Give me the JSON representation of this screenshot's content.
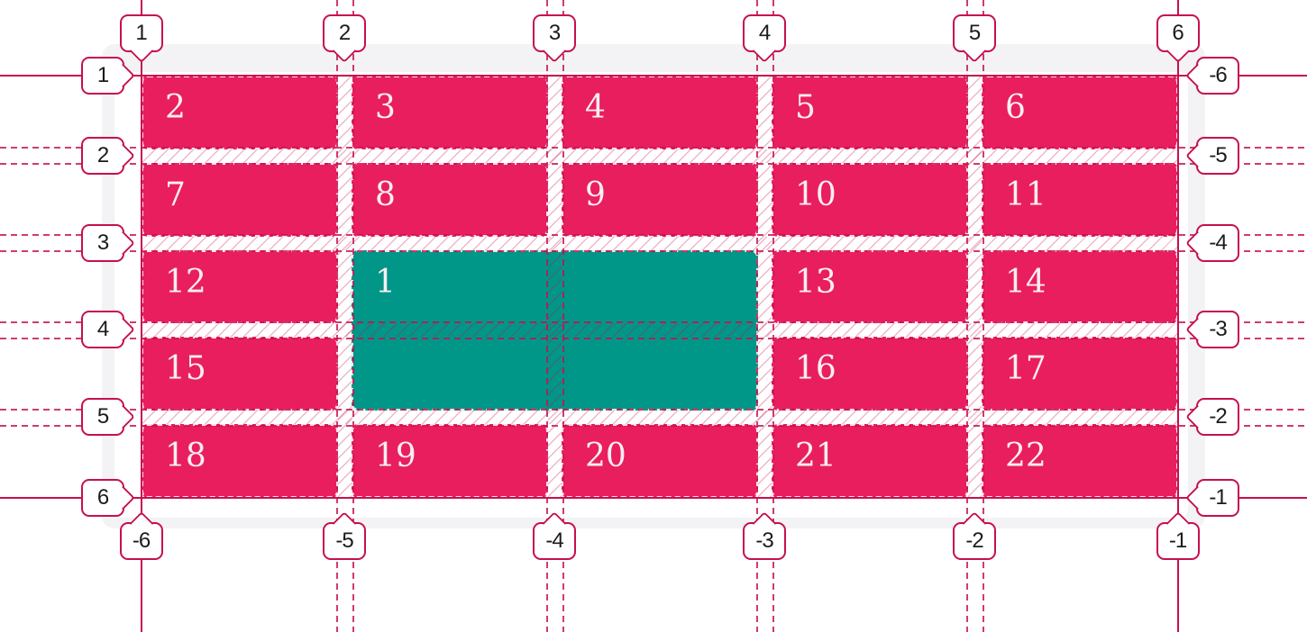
{
  "colors": {
    "cell_pink": "#e91e5f",
    "cell_teal": "#009688",
    "line_crimson": "#c6104e",
    "container_gray": "#f3f3f6",
    "badge_background": "#ffffff",
    "badge_text": "#1b1b1f",
    "cell_text": "#faeef2"
  },
  "grid": {
    "columns": 5,
    "rows": 5,
    "items": [
      {
        "label": "1",
        "variant": "teal",
        "grid_column": "2 / 4",
        "grid_row": "3 / 5"
      },
      {
        "label": "2"
      },
      {
        "label": "3"
      },
      {
        "label": "4"
      },
      {
        "label": "5"
      },
      {
        "label": "6"
      },
      {
        "label": "7"
      },
      {
        "label": "8"
      },
      {
        "label": "9"
      },
      {
        "label": "10"
      },
      {
        "label": "11"
      },
      {
        "label": "12"
      },
      {
        "label": "13"
      },
      {
        "label": "14"
      },
      {
        "label": "15"
      },
      {
        "label": "16"
      },
      {
        "label": "17"
      },
      {
        "label": "18"
      },
      {
        "label": "19"
      },
      {
        "label": "20"
      },
      {
        "label": "21"
      },
      {
        "label": "22"
      }
    ]
  },
  "line_badges": {
    "top": [
      "1",
      "2",
      "3",
      "4",
      "5",
      "6"
    ],
    "bottom": [
      "-6",
      "-5",
      "-4",
      "-3",
      "-2",
      "-1"
    ],
    "left": [
      "1",
      "2",
      "3",
      "4",
      "5",
      "6"
    ],
    "right": [
      "-6",
      "-5",
      "-4",
      "-3",
      "-2",
      "-1"
    ]
  }
}
